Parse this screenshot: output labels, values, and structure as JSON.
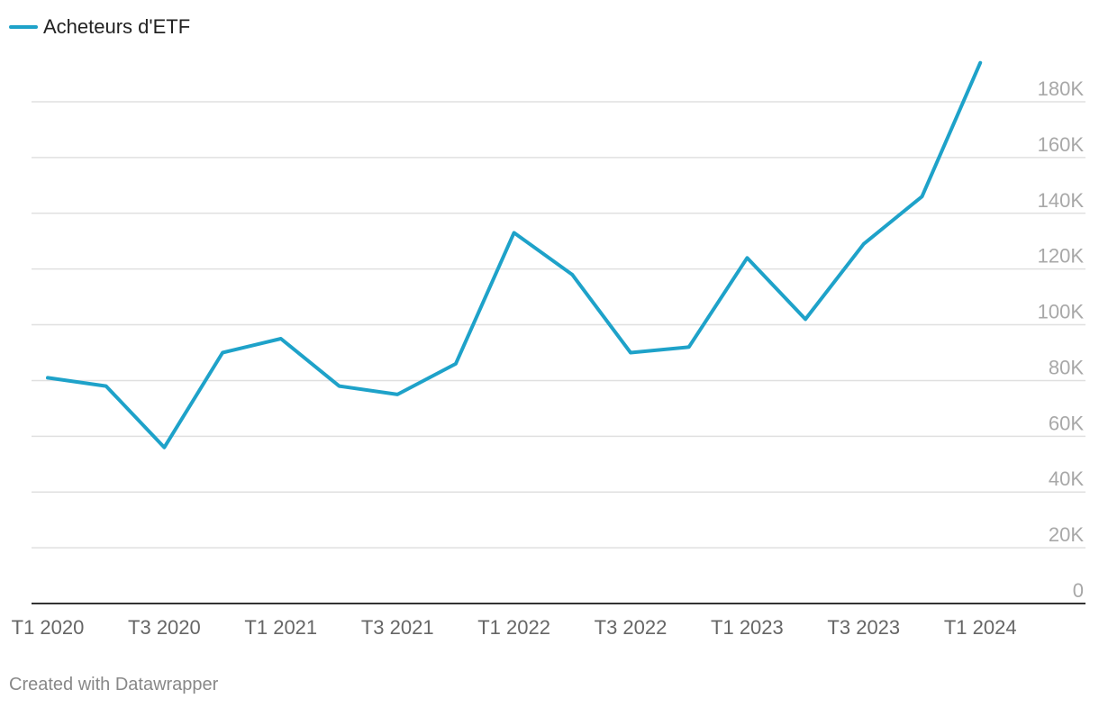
{
  "legend": {
    "label": "Acheteurs d'ETF"
  },
  "credit": "Created with Datawrapper",
  "colors": {
    "line": "#1ea2c9",
    "grid": "#e0e0e0",
    "axis": "#333333",
    "tick_y": "#a8a8a8",
    "tick_x": "#666666"
  },
  "chart_data": {
    "type": "line",
    "title": "",
    "xlabel": "",
    "ylabel": "",
    "ylim": [
      0,
      180000
    ],
    "grid": true,
    "legend_position": "top-left",
    "y_axis_position": "right",
    "x_tick_labels": [
      "T1 2020",
      "T3 2020",
      "T1 2021",
      "T3 2021",
      "T1 2022",
      "T3 2022",
      "T1 2023",
      "T3 2023",
      "T1 2024"
    ],
    "y_tick_values": [
      0,
      20000,
      40000,
      60000,
      80000,
      100000,
      120000,
      140000,
      160000,
      180000
    ],
    "y_tick_labels": [
      "0",
      "20K",
      "40K",
      "60K",
      "80K",
      "100K",
      "120K",
      "140K",
      "160K",
      "180K"
    ],
    "x": [
      "T1 2020",
      "T2 2020",
      "T3 2020",
      "T4 2020",
      "T1 2021",
      "T2 2021",
      "T3 2021",
      "T4 2021",
      "T1 2022",
      "T2 2022",
      "T3 2022",
      "T4 2022",
      "T1 2023",
      "T2 2023",
      "T3 2023",
      "T4 2023",
      "T1 2024"
    ],
    "series": [
      {
        "name": "Acheteurs d'ETF",
        "values": [
          81000,
          78000,
          56000,
          90000,
          95000,
          78000,
          75000,
          86000,
          133000,
          118000,
          90000,
          92000,
          124000,
          102000,
          129000,
          146000,
          194000
        ]
      }
    ]
  }
}
